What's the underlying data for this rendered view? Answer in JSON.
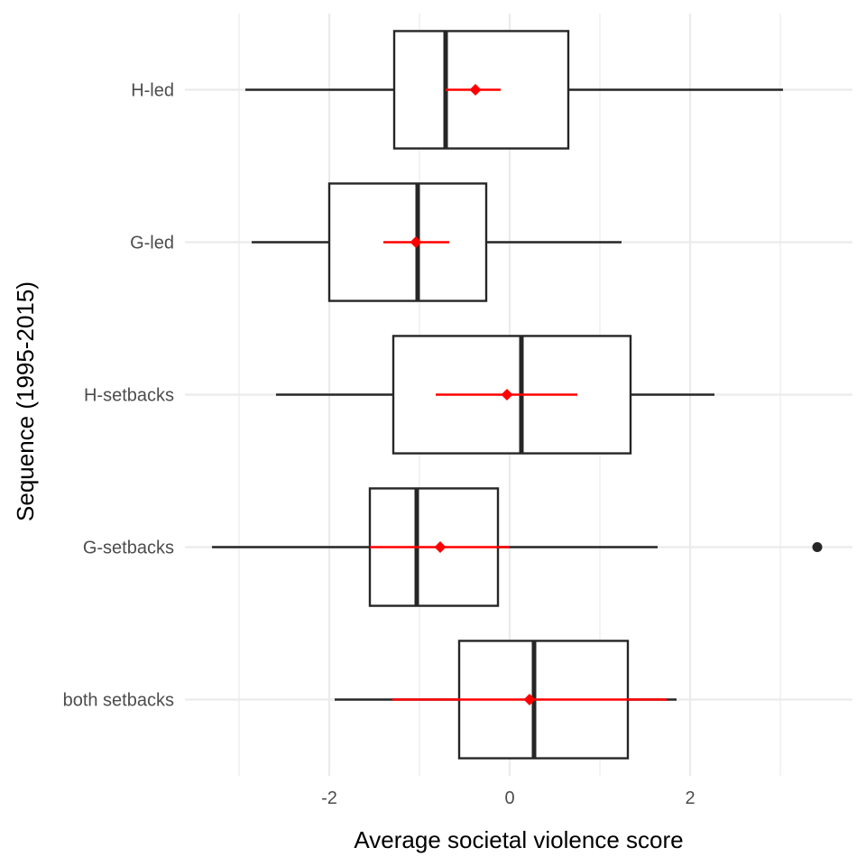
{
  "chart_data": {
    "type": "boxplot",
    "orientation": "horizontal",
    "xlabel": "Average societal violence score",
    "ylabel": "Sequence (1995-2015)",
    "xlim": [
      -3.6,
      3.8
    ],
    "x_ticks": [
      -2,
      0,
      2
    ],
    "x_tick_labels": [
      "-2",
      "0",
      "2"
    ],
    "grid": true,
    "colors": {
      "box": "#262626",
      "mean": "#ff0000",
      "grid": "#ebebeb",
      "tick": "#4d4d4d"
    },
    "categories": [
      "H-led",
      "G-led",
      "H-setbacks",
      "G-setbacks",
      "both setbacks"
    ],
    "boxes": [
      {
        "name": "H-led",
        "min": -2.93,
        "q1": -1.28,
        "median": -0.71,
        "q3": 0.65,
        "max": 3.03,
        "outliers": [],
        "mean": -0.38,
        "mean_lo": -0.71,
        "mean_hi": -0.1
      },
      {
        "name": "G-led",
        "min": -2.86,
        "q1": -2.0,
        "median": -1.02,
        "q3": -0.26,
        "max": 1.24,
        "outliers": [],
        "mean": -1.04,
        "mean_lo": -1.4,
        "mean_hi": -0.67
      },
      {
        "name": "H-setbacks",
        "min": -2.59,
        "q1": -1.29,
        "median": 0.13,
        "q3": 1.34,
        "max": 2.27,
        "outliers": [],
        "mean": -0.03,
        "mean_lo": -0.82,
        "mean_hi": 0.75
      },
      {
        "name": "G-setbacks",
        "min": -3.3,
        "q1": -1.55,
        "median": -1.03,
        "q3": -0.13,
        "max": 1.64,
        "outliers": [
          3.41
        ],
        "mean": -0.77,
        "mean_lo": -1.55,
        "mean_hi": 0.0
      },
      {
        "name": "both setbacks",
        "min": -1.94,
        "q1": -0.56,
        "median": 0.27,
        "q3": 1.31,
        "max": 1.85,
        "outliers": [],
        "mean": 0.22,
        "mean_lo": -1.3,
        "mean_hi": 1.74
      }
    ]
  }
}
